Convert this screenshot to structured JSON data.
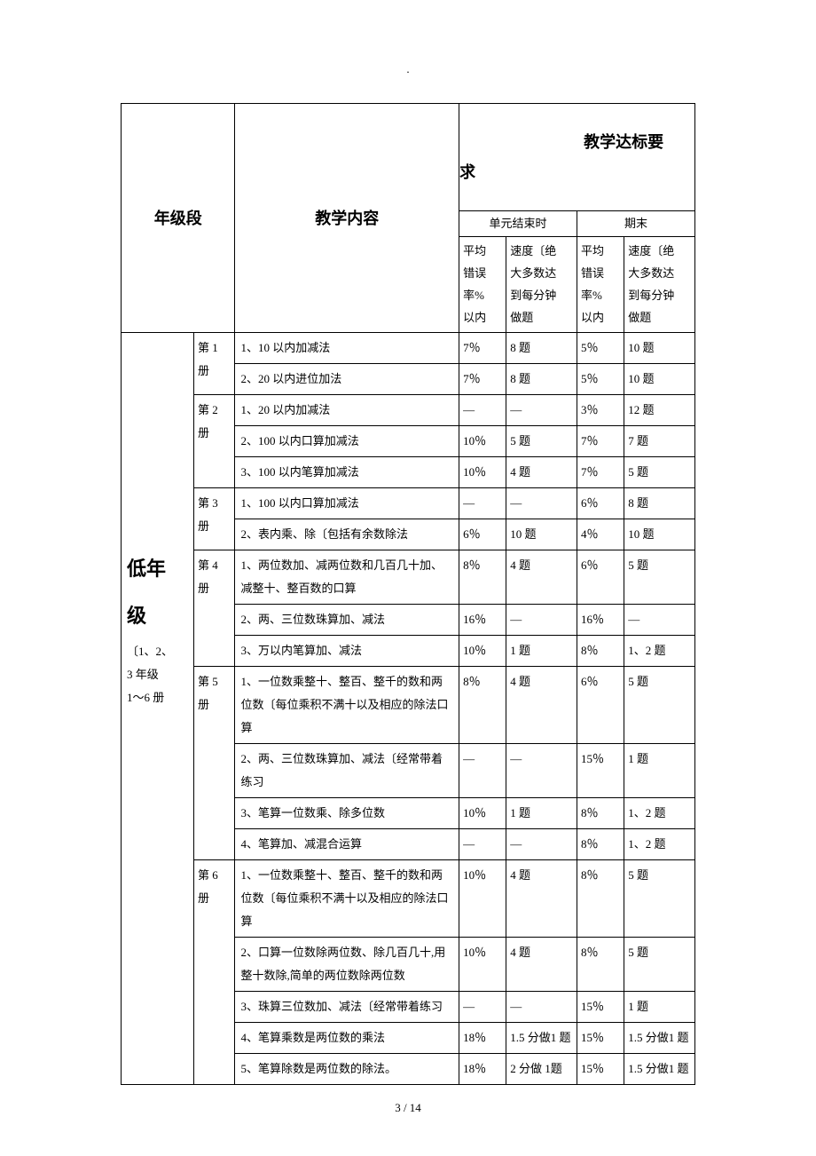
{
  "header_mark": ".",
  "headers": {
    "grade_stage": "年级段",
    "teaching_content": "教学内容",
    "teaching_requirement_line1": "教学达标要",
    "teaching_requirement_line2": "求",
    "unit_end": "单元结束时",
    "term_end": "期末",
    "avg_err_line1": "平均",
    "avg_err_line2": "错误",
    "avg_err_line3": "率%",
    "avg_err_line4": "以内",
    "speed_line1": "速度〔绝",
    "speed_line2": "大多数达",
    "speed_line3": "到每分钟",
    "speed_line4": "做题"
  },
  "grade_section": {
    "title_big1": "低年",
    "title_big2": "级",
    "subtitle_line1": "〔1、2、",
    "subtitle_line2": "3 年级",
    "subtitle_line3": "1～6 册"
  },
  "books": {
    "b1": "第 1 册",
    "b2": "第 2 册",
    "b3": "第 3 册",
    "b4": "第 4 册",
    "b5": "第 5 册",
    "b6": "第 6 册"
  },
  "rows": [
    {
      "content": "1、10 以内加减法",
      "d1": "7％",
      "d2": "8 题",
      "d3": "5％",
      "d4": "10 题"
    },
    {
      "content": "2、20 以内进位加法",
      "d1": "7％",
      "d2": "8 题",
      "d3": "5％",
      "d4": "10 题"
    },
    {
      "content": "1、20 以内加减法",
      "d1": "—",
      "d2": "—",
      "d3": "3％",
      "d4": "12 题"
    },
    {
      "content": "2、100 以内口算加减法",
      "d1": "10％",
      "d2": "5 题",
      "d3": "7％",
      "d4": "7 题"
    },
    {
      "content": "3、100 以内笔算加减法",
      "d1": "10％",
      "d2": "4 题",
      "d3": "7％",
      "d4": "5 题"
    },
    {
      "content": "1、100 以内口算加减法",
      "d1": "—",
      "d2": "—",
      "d3": "6％",
      "d4": "8 题"
    },
    {
      "content": "2、表内乘、除〔包括有余数除法",
      "d1": "6％",
      "d2": "10 题",
      "d3": "4％",
      "d4": "10 题"
    },
    {
      "content": "1、两位数加、减两位数和几百几十加、减整十、整百数的口算",
      "d1": "8％",
      "d2": "4 题",
      "d3": "6％",
      "d4": "5 题"
    },
    {
      "content": "2、两、三位数珠算加、减法",
      "d1": "16％",
      "d2": "—",
      "d3": "16％",
      "d4": "—"
    },
    {
      "content": "3、万以内笔算加、减法",
      "d1": "10％",
      "d2": "1 题",
      "d3": "8％",
      "d4": "1、2 题"
    },
    {
      "content": "1、一位数乘整十、整百、整千的数和两位数〔每位乘积不满十以及相应的除法口算",
      "d1": "8％",
      "d2": "4 题",
      "d3": "6％",
      "d4": "5 题"
    },
    {
      "content": "2、两、三位数珠算加、减法〔经常带着练习",
      "d1": "—",
      "d2": "—",
      "d3": "15％",
      "d4": "1 题"
    },
    {
      "content": "3、笔算一位数乘、除多位数",
      "d1": "10％",
      "d2": "1 题",
      "d3": "8％",
      "d4": "1、2 题"
    },
    {
      "content": "4、笔算加、减混合运算",
      "d1": "—",
      "d2": "—",
      "d3": "8％",
      "d4": "1、2 题"
    },
    {
      "content": "1、一位数乘整十、整百、整千的数和两位数〔每位乘积不满十以及相应的除法口算",
      "d1": "10％",
      "d2": "4 题",
      "d3": "8％",
      "d4": "5 题"
    },
    {
      "content": "2、口算一位数除两位数、除几百几十,用整十数除,简单的两位数除两位数",
      "d1": "10％",
      "d2": "4 题",
      "d3": "8％",
      "d4": "5 题"
    },
    {
      "content": "3、珠算三位数加、减法〔经常带着练习",
      "d1": "—",
      "d2": "—",
      "d3": "15％",
      "d4": "1 题"
    },
    {
      "content": "4、笔算乘数是两位数的乘法",
      "d1": "18％",
      "d2": "1.5 分做1 题",
      "d3": "15％",
      "d4": "1.5 分做1 题"
    },
    {
      "content": "5、笔算除数是两位数的除法。",
      "d1": "18％",
      "d2": "2 分做 1题",
      "d3": "15％",
      "d4": "1.5 分做1 题"
    }
  ],
  "footer": "3 / 14"
}
